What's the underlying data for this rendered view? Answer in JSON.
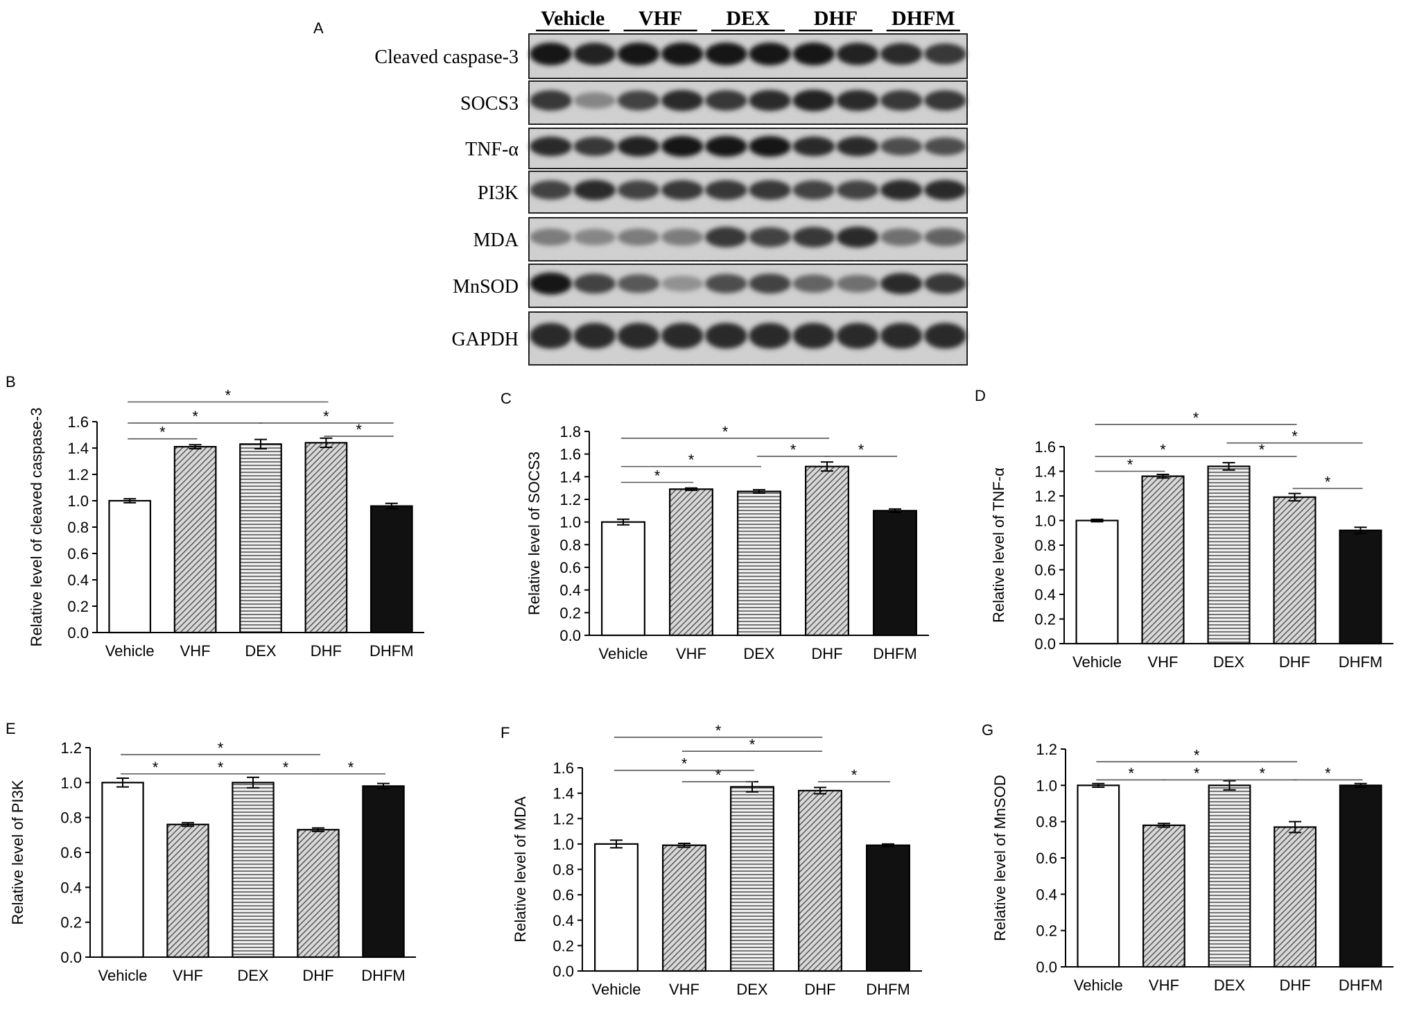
{
  "panel_letters": {
    "a": "A",
    "b": "B",
    "c": "C",
    "d": "D",
    "e": "E",
    "f": "F",
    "g": "G"
  },
  "blot": {
    "groups": [
      "Vehicle",
      "VHF",
      "DEX",
      "DHF",
      "DHFM"
    ],
    "rows": [
      "Cleaved caspase-3",
      "SOCS3",
      "TNF-α",
      "PI3K",
      "MDA",
      "MnSOD",
      "GAPDH"
    ]
  },
  "colors": {
    "vehicle_fill": "#ffffff",
    "dhfm_fill": "#111111",
    "hatch": "#444444",
    "axis": "#000000"
  },
  "chart_data": [
    {
      "panel": "B",
      "type": "bar",
      "categories": [
        "Vehicle",
        "VHF",
        "DEX",
        "DHF",
        "DHFM"
      ],
      "values": [
        1.0,
        1.41,
        1.43,
        1.44,
        0.96
      ],
      "errors": [
        0.015,
        0.015,
        0.035,
        0.035,
        0.02
      ],
      "ylabel": "Relative level of cleaved caspase-3",
      "ylim": [
        0,
        1.6
      ],
      "yticks": [
        "0.0",
        "0.2",
        "0.4",
        "0.6",
        "0.8",
        "1.0",
        "1.2",
        "1.4",
        "1.6"
      ],
      "fills": [
        "white",
        "diag",
        "hstripe",
        "diag",
        "black"
      ],
      "significance": [
        {
          "from": 0,
          "to": 1,
          "y": 1.47,
          "label": "*"
        },
        {
          "from": 0,
          "to": 2,
          "y": 1.59,
          "label": "*"
        },
        {
          "from": 2,
          "to": 4,
          "y": 1.59,
          "label": "*"
        },
        {
          "from": 3,
          "to": 4,
          "y": 1.49,
          "label": "*"
        },
        {
          "from": 0,
          "to": 3,
          "y": 1.75,
          "label": "*"
        }
      ]
    },
    {
      "panel": "C",
      "type": "bar",
      "categories": [
        "Vehicle",
        "VHF",
        "DEX",
        "DHF",
        "DHFM"
      ],
      "values": [
        1.0,
        1.29,
        1.27,
        1.49,
        1.1
      ],
      "errors": [
        0.025,
        0.01,
        0.015,
        0.04,
        0.015
      ],
      "ylabel": "Relative level of SOCS3",
      "ylim": [
        0,
        1.8
      ],
      "yticks": [
        "0.0",
        "0.2",
        "0.4",
        "0.6",
        "0.8",
        "1.0",
        "1.2",
        "1.4",
        "1.6",
        "1.8"
      ],
      "fills": [
        "white",
        "diag",
        "hstripe",
        "diag",
        "black"
      ],
      "significance": [
        {
          "from": 0,
          "to": 1,
          "y": 1.35,
          "label": "*"
        },
        {
          "from": 0,
          "to": 2,
          "y": 1.49,
          "label": "*"
        },
        {
          "from": 2,
          "to": 3,
          "y": 1.58,
          "label": "*"
        },
        {
          "from": 3,
          "to": 4,
          "y": 1.58,
          "label": "*"
        },
        {
          "from": 0,
          "to": 3,
          "y": 1.74,
          "label": "*"
        }
      ]
    },
    {
      "panel": "D",
      "type": "bar",
      "categories": [
        "Vehicle",
        "VHF",
        "DEX",
        "DHF",
        "DHFM"
      ],
      "values": [
        1.0,
        1.36,
        1.44,
        1.19,
        0.92
      ],
      "errors": [
        0.01,
        0.015,
        0.03,
        0.03,
        0.025
      ],
      "ylabel": "Relative level of TNF-α",
      "ylim": [
        0,
        1.6
      ],
      "yticks": [
        "0.0",
        "0.2",
        "0.4",
        "0.6",
        "0.8",
        "1.0",
        "1.2",
        "1.4",
        "1.6"
      ],
      "fills": [
        "white",
        "diag",
        "hstripe",
        "diag",
        "black"
      ],
      "significance": [
        {
          "from": 0,
          "to": 1,
          "y": 1.4,
          "label": "*"
        },
        {
          "from": 0,
          "to": 2,
          "y": 1.52,
          "label": "*"
        },
        {
          "from": 2,
          "to": 3,
          "y": 1.52,
          "label": "*"
        },
        {
          "from": 3,
          "to": 4,
          "y": 1.26,
          "label": "*"
        },
        {
          "from": 2,
          "to": 4,
          "y": 1.63,
          "label": "*"
        },
        {
          "from": 0,
          "to": 3,
          "y": 1.78,
          "label": "*"
        }
      ]
    },
    {
      "panel": "E",
      "type": "bar",
      "categories": [
        "Vehicle",
        "VHF",
        "DEX",
        "DHF",
        "DHFM"
      ],
      "values": [
        1.0,
        0.76,
        1.0,
        0.73,
        0.98
      ],
      "errors": [
        0.025,
        0.01,
        0.03,
        0.01,
        0.015
      ],
      "ylabel": "Relative level of PI3K",
      "ylim": [
        0,
        1.2
      ],
      "yticks": [
        "0.0",
        "0.2",
        "0.4",
        "0.6",
        "0.8",
        "1.0",
        "1.2"
      ],
      "fills": [
        "white",
        "diag",
        "hstripe",
        "diag",
        "black"
      ],
      "significance": [
        {
          "from": 0,
          "to": 1,
          "y": 1.05,
          "label": "*"
        },
        {
          "from": 1,
          "to": 2,
          "y": 1.05,
          "label": "*"
        },
        {
          "from": 2,
          "to": 3,
          "y": 1.05,
          "label": "*"
        },
        {
          "from": 3,
          "to": 4,
          "y": 1.05,
          "label": "*"
        },
        {
          "from": 0,
          "to": 3,
          "y": 1.16,
          "label": "*"
        }
      ]
    },
    {
      "panel": "F",
      "type": "bar",
      "categories": [
        "Vehicle",
        "VHF",
        "DEX",
        "DHF",
        "DHFM"
      ],
      "values": [
        1.0,
        0.99,
        1.45,
        1.42,
        0.99
      ],
      "errors": [
        0.03,
        0.015,
        0.04,
        0.025,
        0.01
      ],
      "ylabel": "Relative level of MDA",
      "ylim": [
        0,
        1.6
      ],
      "yticks": [
        "0.0",
        "0.2",
        "0.4",
        "0.6",
        "0.8",
        "1.0",
        "1.2",
        "1.4",
        "1.6"
      ],
      "fills": [
        "white",
        "diag",
        "hstripe",
        "diag",
        "black"
      ],
      "significance": [
        {
          "from": 0,
          "to": 2,
          "y": 1.58,
          "label": "*"
        },
        {
          "from": 1,
          "to": 2,
          "y": 1.49,
          "label": "*"
        },
        {
          "from": 3,
          "to": 4,
          "y": 1.49,
          "label": "*"
        },
        {
          "from": 1,
          "to": 3,
          "y": 1.73,
          "label": "*"
        },
        {
          "from": 0,
          "to": 3,
          "y": 1.84,
          "label": "*"
        }
      ]
    },
    {
      "panel": "G",
      "type": "bar",
      "categories": [
        "Vehicle",
        "VHF",
        "DEX",
        "DHF",
        "DHFM"
      ],
      "values": [
        1.0,
        0.78,
        1.0,
        0.77,
        1.0
      ],
      "errors": [
        0.01,
        0.01,
        0.025,
        0.03,
        0.01
      ],
      "ylabel": "Relative level of MnSOD",
      "ylim": [
        0,
        1.2
      ],
      "yticks": [
        "0.0",
        "0.2",
        "0.4",
        "0.6",
        "0.8",
        "1.0",
        "1.2"
      ],
      "fills": [
        "white",
        "diag",
        "hstripe",
        "diag",
        "black"
      ],
      "significance": [
        {
          "from": 0,
          "to": 1,
          "y": 1.03,
          "label": "*"
        },
        {
          "from": 1,
          "to": 2,
          "y": 1.03,
          "label": "*"
        },
        {
          "from": 2,
          "to": 3,
          "y": 1.03,
          "label": "*"
        },
        {
          "from": 3,
          "to": 4,
          "y": 1.03,
          "label": "*"
        },
        {
          "from": 0,
          "to": 3,
          "y": 1.13,
          "label": "*"
        }
      ]
    }
  ]
}
